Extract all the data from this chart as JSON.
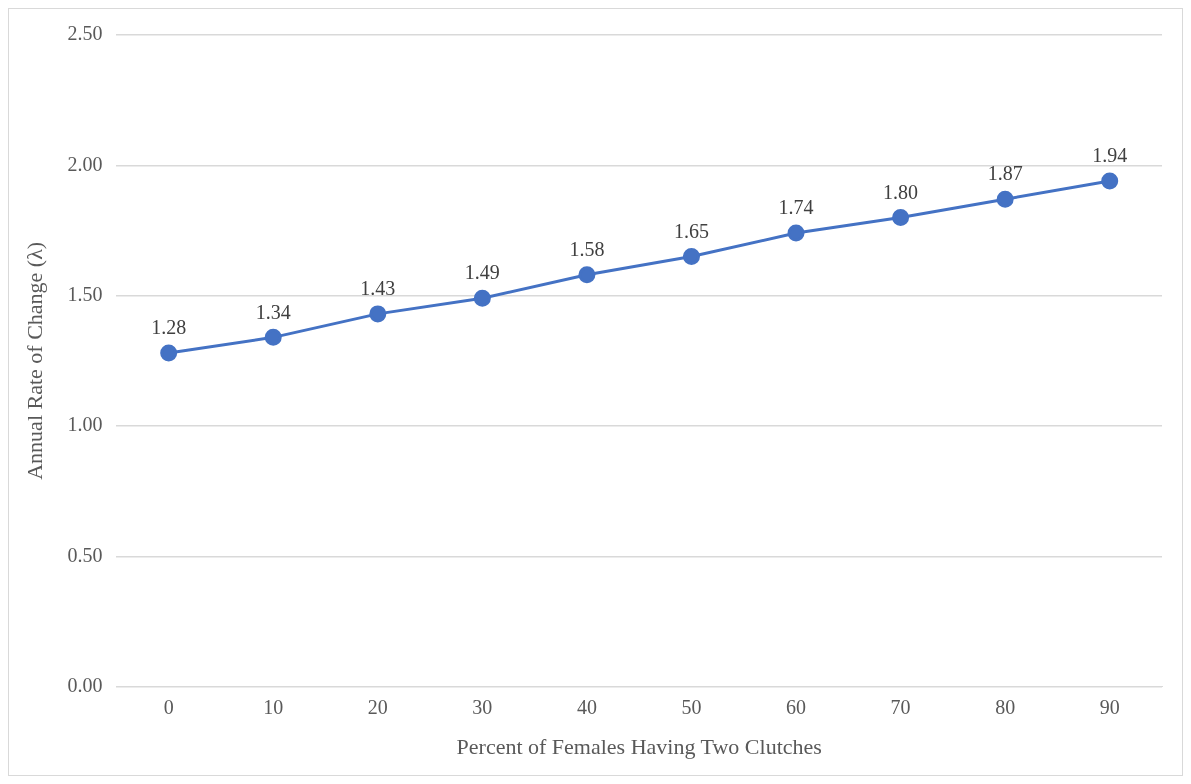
{
  "chart_data": {
    "type": "line",
    "xlabel": "Percent of Females Having Two Clutches",
    "ylabel": "Annual Rate of Change (λ)",
    "categories": [
      "0",
      "10",
      "20",
      "30",
      "40",
      "50",
      "60",
      "70",
      "80",
      "90"
    ],
    "series": [
      {
        "color": "#4472c4",
        "values": [
          1.28,
          1.34,
          1.43,
          1.49,
          1.58,
          1.65,
          1.74,
          1.8,
          1.87,
          1.94
        ],
        "value_labels": [
          "1.28",
          "1.34",
          "1.43",
          "1.49",
          "1.58",
          "1.65",
          "1.74",
          "1.80",
          "1.87",
          "1.94"
        ]
      }
    ],
    "ylim": [
      0,
      2.5
    ],
    "yticks": [
      {
        "value": 0,
        "label": "0.00"
      },
      {
        "value": 0.5,
        "label": "0.50"
      },
      {
        "value": 1,
        "label": "1.00"
      },
      {
        "value": 1.5,
        "label": "1.50"
      },
      {
        "value": 2,
        "label": "2.00"
      },
      {
        "value": 2.5,
        "label": "2.50"
      }
    ],
    "grid": "y",
    "marker": "circle",
    "line_style": "solid",
    "legend": false
  }
}
